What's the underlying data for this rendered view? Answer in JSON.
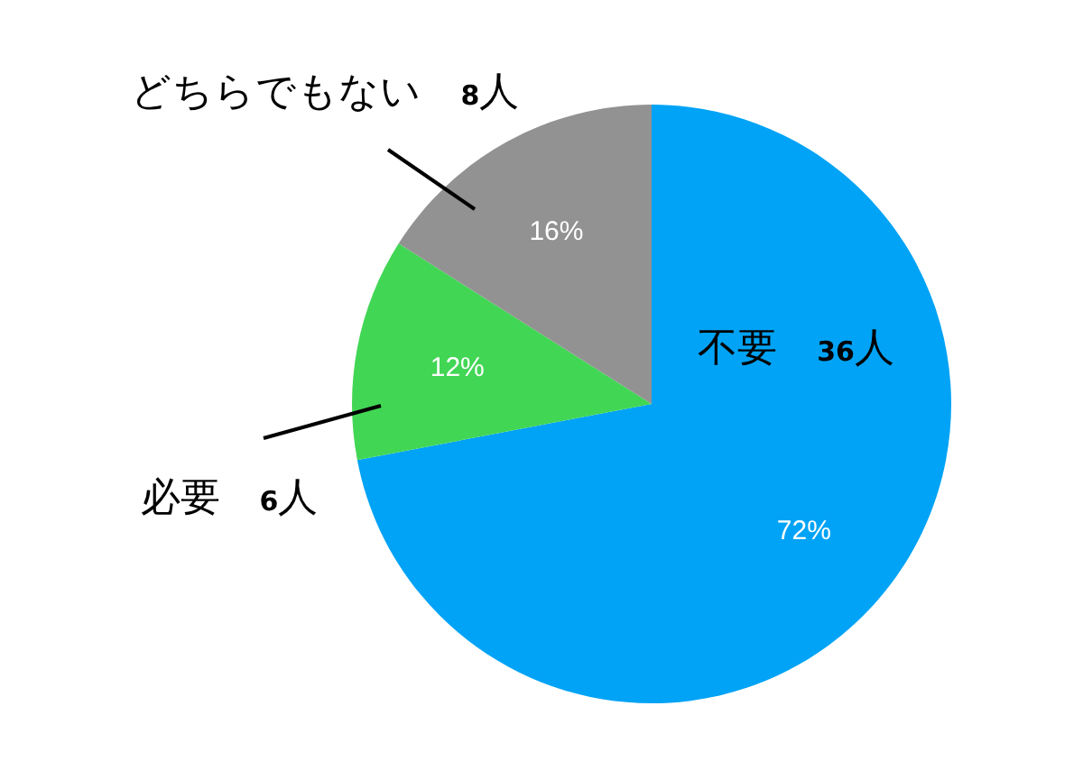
{
  "chart_data": {
    "type": "pie",
    "categories": [
      "不要　36人",
      "必要　6人",
      "どちらでもない　8人"
    ],
    "values": [
      72,
      12,
      16
    ],
    "value_labels": [
      "72%",
      "12%",
      "16%"
    ],
    "colors": [
      "#00a3f5",
      "#42d655",
      "#929292"
    ]
  }
}
